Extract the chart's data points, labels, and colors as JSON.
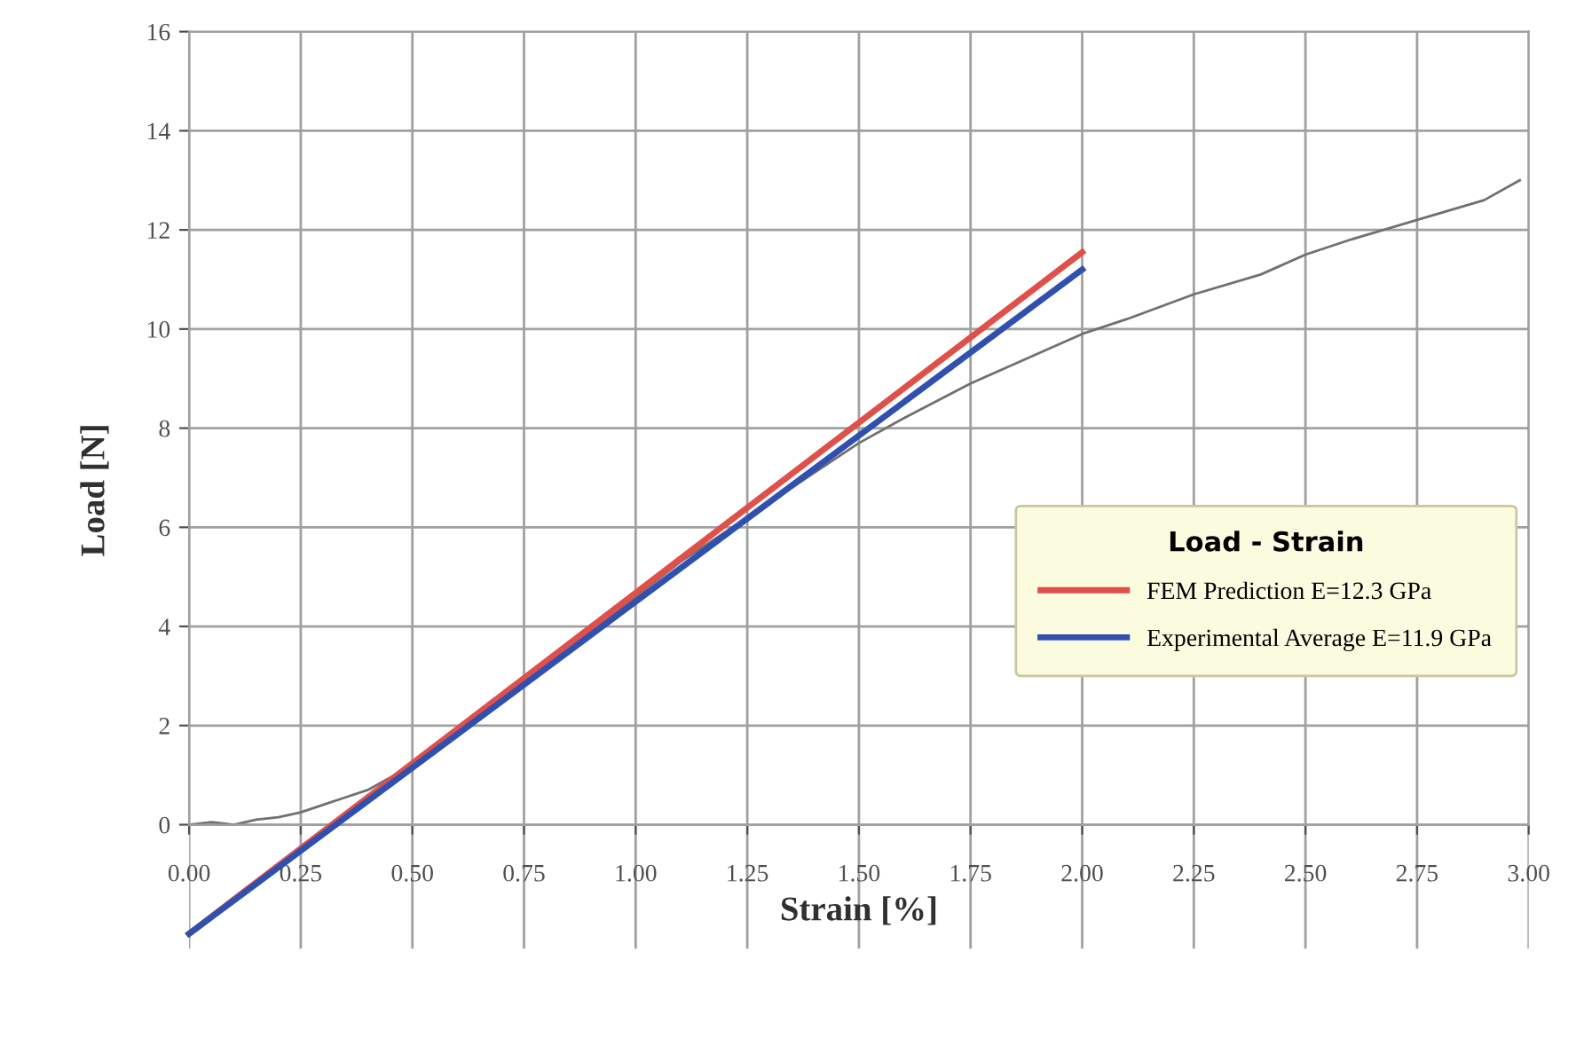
{
  "chart_data": {
    "type": "line",
    "xlabel": "Strain [%]",
    "ylabel": "Load [N]",
    "legend_title": "Load - Strain",
    "legend": "center right",
    "grid": true,
    "xlim": [
      0,
      3
    ],
    "xticks": [
      {
        "value": 0,
        "label": "0.00"
      },
      {
        "value": 0.25,
        "label": "0.25"
      },
      {
        "value": 0.5,
        "label": "0.50"
      },
      {
        "value": 0.75,
        "label": "0.75"
      },
      {
        "value": 1,
        "label": "1.00"
      },
      {
        "value": 1.25,
        "label": "1.25"
      },
      {
        "value": 1.5,
        "label": "1.50"
      },
      {
        "value": 1.75,
        "label": "1.75"
      },
      {
        "value": 2,
        "label": "2.00"
      },
      {
        "value": 2.25,
        "label": "2.25"
      },
      {
        "value": 2.5,
        "label": "2.50"
      },
      {
        "value": 2.75,
        "label": "2.75"
      },
      {
        "value": 3,
        "label": "3.00"
      }
    ],
    "ylim": [
      -2.5,
      16
    ],
    "yticks": [
      0,
      2,
      4,
      6,
      8,
      10,
      12,
      14,
      16
    ],
    "series": [
      {
        "color": "#707070",
        "x": [
          0,
          0.05,
          0.1,
          0.15,
          0.2,
          0.25,
          0.3,
          0.35,
          0.4,
          0.45,
          0.5,
          0.6,
          0.75,
          0.9,
          1.0,
          1.1,
          1.25,
          1.4,
          1.5,
          1.6,
          1.75,
          1.9,
          2.0,
          2.1,
          2.25,
          2.4,
          2.5,
          2.6,
          2.75,
          2.9,
          2.98
        ],
        "values": [
          0,
          0.05,
          0,
          0.1,
          0.15,
          0.25,
          0.4,
          0.55,
          0.7,
          0.95,
          1.2,
          1.9,
          2.8,
          3.9,
          4.6,
          5.3,
          6.2,
          7.1,
          7.7,
          8.2,
          8.9,
          9.5,
          9.9,
          10.2,
          10.7,
          11.1,
          11.5,
          11.8,
          12.2,
          12.6,
          13.0
        ]
      },
      {
        "name": "FEM Prediction E=12.3 GPa",
        "color": "#e0504a",
        "x": [
          0,
          2
        ],
        "values": [
          -2.2,
          11.55
        ]
      },
      {
        "name": "Experimental Average E=11.9 GPa",
        "color": "#3050b0",
        "x": [
          0,
          2
        ],
        "values": [
          -2.2,
          11.2
        ]
      }
    ]
  }
}
